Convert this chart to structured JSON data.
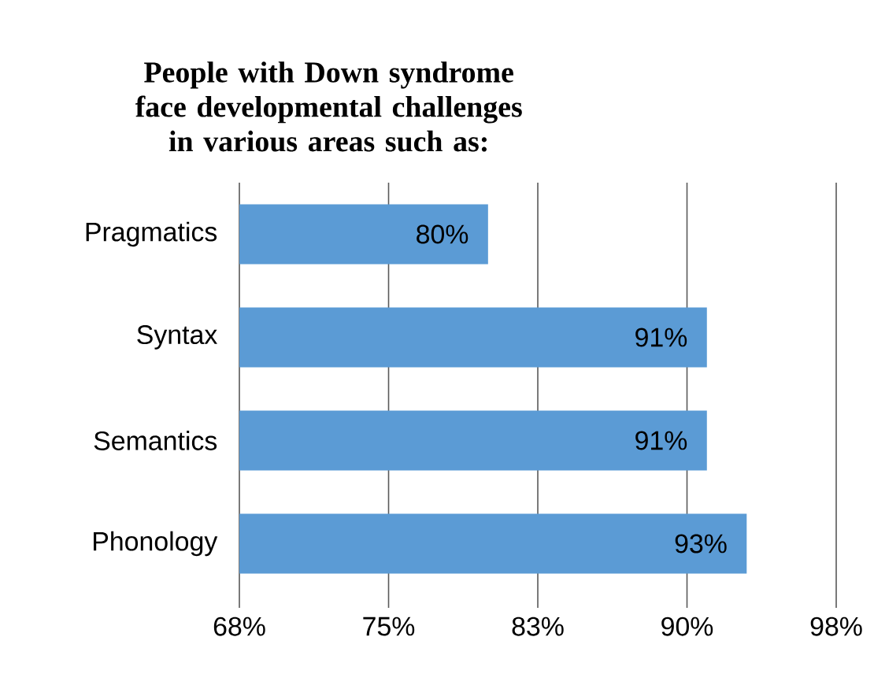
{
  "chart_data": {
    "type": "bar",
    "orientation": "horizontal",
    "title": "People with Down syndrome face developmental challenges in various areas such as:",
    "categories": [
      "Pragmatics",
      "Syntax",
      "Semantics",
      "Phonology"
    ],
    "values": [
      80,
      91,
      91,
      93
    ],
    "value_labels": [
      "80%",
      "91%",
      "91%",
      "93%"
    ],
    "color": "#5b9bd5",
    "xlim": [
      67.5,
      97.5
    ],
    "xticks": [
      {
        "value": 67.5,
        "label": "68%"
      },
      {
        "value": 75,
        "label": "75%"
      },
      {
        "value": 82.5,
        "label": "83%"
      },
      {
        "value": 90,
        "label": "90%"
      },
      {
        "value": 97.5,
        "label": "98%"
      }
    ],
    "grid": "x"
  }
}
